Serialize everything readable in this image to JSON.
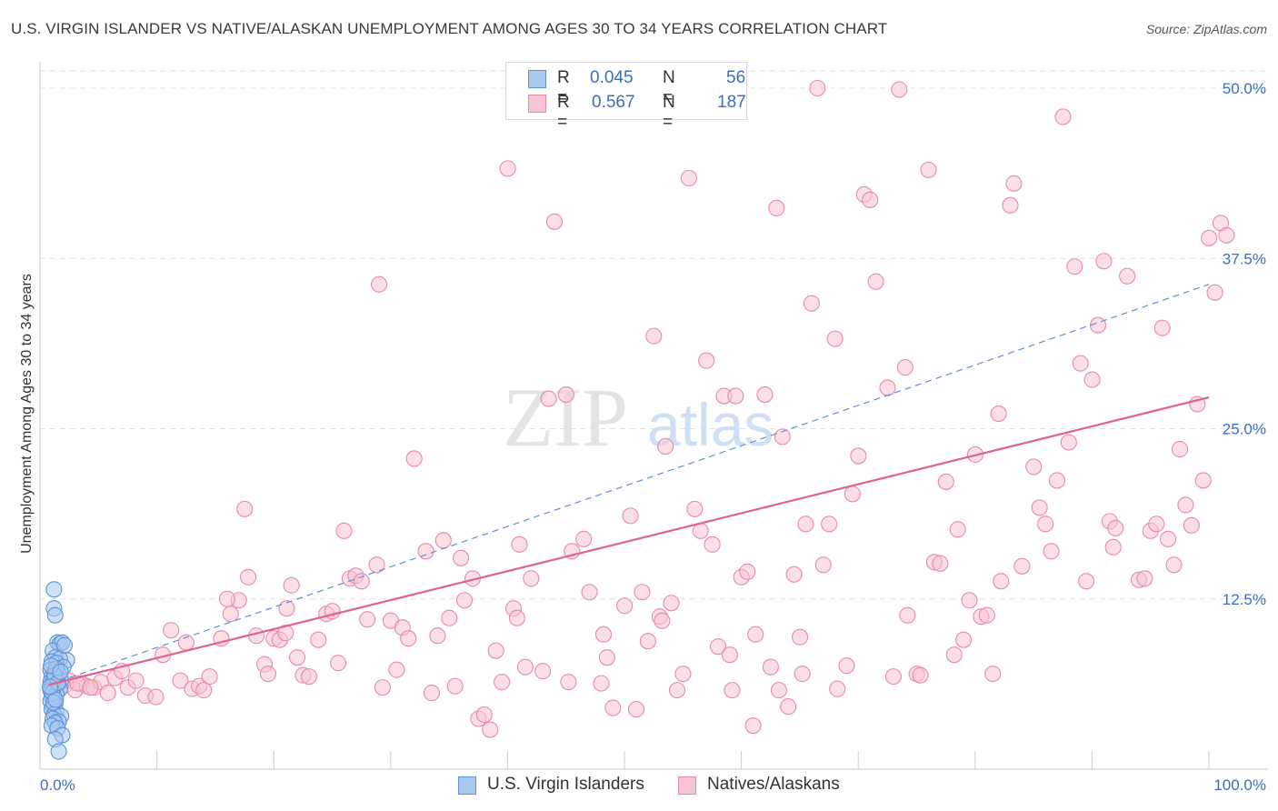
{
  "title": "U.S. VIRGIN ISLANDER VS NATIVE/ALASKAN UNEMPLOYMENT AMONG AGES 30 TO 34 YEARS CORRELATION CHART",
  "source": "Source: ZipAtlas.com",
  "watermark": {
    "zip": "ZIP",
    "atlas": "atlas"
  },
  "legend": {
    "r_label": "R =",
    "n_label": "N =",
    "rows": [
      {
        "r": "0.045",
        "n": "56"
      },
      {
        "r": "0.567",
        "n": "187"
      }
    ]
  },
  "bottom_legend": [
    "U.S. Virgin Islanders",
    "Natives/Alaskans"
  ],
  "colors": {
    "blue_fill": "#a9c8f0",
    "blue_stroke": "#5b93d6",
    "blue_line": "#5b93d6",
    "pink_fill": "#f7c4d3",
    "pink_stroke": "#e88aa8",
    "pink_line": "#e0628e",
    "axis_text": "#3a6fbf",
    "grid": "#e2e2e2"
  },
  "chart_data": {
    "type": "scatter",
    "title": "U.S. VIRGIN ISLANDER VS NATIVE/ALASKAN UNEMPLOYMENT AMONG AGES 30 TO 34 YEARS CORRELATION CHART",
    "xlabel": "",
    "ylabel": "Unemployment Among Ages 30 to 34 years",
    "xlim": [
      0,
      100
    ],
    "ylim": [
      0,
      50
    ],
    "x_tick_labels": [
      "0.0%",
      "100.0%"
    ],
    "y_ticks": [
      12.5,
      25.0,
      37.5,
      50.0
    ],
    "y_tick_labels": [
      "12.5%",
      "25.0%",
      "37.5%",
      "50.0%"
    ],
    "series": [
      {
        "name": "U.S. Virgin Islanders",
        "R": 0.045,
        "N": 56,
        "trend": {
          "x": [
            0,
            100
          ],
          "y": [
            6.2,
            35.6
          ],
          "style": "dashed"
        },
        "points": [
          [
            0.5,
            13.2
          ],
          [
            0.5,
            11.8
          ],
          [
            0.6,
            11.3
          ],
          [
            0.8,
            9.3
          ],
          [
            1.0,
            9.2
          ],
          [
            1.2,
            9.3
          ],
          [
            0.4,
            8.7
          ],
          [
            1.6,
            8.0
          ],
          [
            0.6,
            8.2
          ],
          [
            1.0,
            8.1
          ],
          [
            0.3,
            7.9
          ],
          [
            0.7,
            7.8
          ],
          [
            1.3,
            7.5
          ],
          [
            0.2,
            7.3
          ],
          [
            0.5,
            7.1
          ],
          [
            0.9,
            7.0
          ],
          [
            0.3,
            6.8
          ],
          [
            0.6,
            6.7
          ],
          [
            1.1,
            6.5
          ],
          [
            0.2,
            6.4
          ],
          [
            0.4,
            6.3
          ],
          [
            0.8,
            6.2
          ],
          [
            0.3,
            6.1
          ],
          [
            0.6,
            6.0
          ],
          [
            1.0,
            5.9
          ],
          [
            0.2,
            5.8
          ],
          [
            0.4,
            5.7
          ],
          [
            0.7,
            5.5
          ],
          [
            0.3,
            5.3
          ],
          [
            0.5,
            5.2
          ],
          [
            0.2,
            5.0
          ],
          [
            0.6,
            4.8
          ],
          [
            0.4,
            4.6
          ],
          [
            0.3,
            4.4
          ],
          [
            0.7,
            4.2
          ],
          [
            0.5,
            4.0
          ],
          [
            1.1,
            3.9
          ],
          [
            0.4,
            3.7
          ],
          [
            0.9,
            3.5
          ],
          [
            0.6,
            3.4
          ],
          [
            0.3,
            3.2
          ],
          [
            0.8,
            3.0
          ],
          [
            1.2,
            2.5
          ],
          [
            0.6,
            2.2
          ],
          [
            0.9,
            1.3
          ],
          [
            0.5,
            6.6
          ],
          [
            0.7,
            7.4
          ],
          [
            0.35,
            5.6
          ],
          [
            0.45,
            4.9
          ],
          [
            0.55,
            6.9
          ],
          [
            1.4,
            9.1
          ],
          [
            0.25,
            7.6
          ],
          [
            0.65,
            5.1
          ],
          [
            0.85,
            6.35
          ],
          [
            1.05,
            7.15
          ],
          [
            0.15,
            6.05
          ]
        ]
      },
      {
        "name": "Natives/Alaskans",
        "R": 0.567,
        "N": 187,
        "trend": {
          "x": [
            0,
            100
          ],
          "y": [
            6.2,
            27.3
          ],
          "style": "solid"
        },
        "points": [
          [
            1.2,
            6.2
          ],
          [
            1.5,
            6.5
          ],
          [
            2.0,
            5.8
          ],
          [
            2.5,
            6.3
          ],
          [
            3.0,
            6.1
          ],
          [
            3.6,
            6.0
          ],
          [
            4.2,
            6.4
          ],
          [
            4.8,
            5.6
          ],
          [
            5.4,
            6.7
          ],
          [
            6.0,
            7.2
          ],
          [
            6.5,
            6.0
          ],
          [
            7.2,
            6.5
          ],
          [
            8.0,
            5.4
          ],
          [
            8.9,
            5.3
          ],
          [
            10.2,
            10.2
          ],
          [
            11.0,
            6.5
          ],
          [
            12.0,
            5.9
          ],
          [
            12.6,
            6.1
          ],
          [
            13.5,
            6.8
          ],
          [
            14.5,
            9.6
          ],
          [
            15.3,
            11.4
          ],
          [
            16.0,
            12.4
          ],
          [
            16.5,
            19.1
          ],
          [
            16.8,
            14.1
          ],
          [
            17.5,
            9.8
          ],
          [
            18.2,
            7.7
          ],
          [
            18.5,
            7.0
          ],
          [
            19.0,
            9.6
          ],
          [
            19.5,
            9.5
          ],
          [
            20.1,
            11.8
          ],
          [
            20.5,
            13.5
          ],
          [
            21.0,
            8.2
          ],
          [
            21.5,
            6.9
          ],
          [
            22.0,
            6.8
          ],
          [
            22.8,
            9.5
          ],
          [
            23.5,
            11.4
          ],
          [
            24.0,
            11.6
          ],
          [
            24.5,
            7.8
          ],
          [
            25.0,
            17.5
          ],
          [
            25.5,
            14.0
          ],
          [
            26.0,
            14.2
          ],
          [
            27.0,
            11.0
          ],
          [
            27.8,
            15.0
          ],
          [
            28.0,
            35.6
          ],
          [
            28.3,
            6.0
          ],
          [
            29.0,
            10.9
          ],
          [
            29.5,
            7.3
          ],
          [
            30.0,
            10.4
          ],
          [
            31.0,
            22.8
          ],
          [
            32.0,
            16.0
          ],
          [
            32.5,
            5.6
          ],
          [
            33.0,
            9.8
          ],
          [
            33.5,
            16.8
          ],
          [
            34.0,
            11.1
          ],
          [
            35.0,
            15.5
          ],
          [
            35.3,
            12.4
          ],
          [
            36.0,
            14.0
          ],
          [
            36.5,
            3.7
          ],
          [
            37.0,
            4.0
          ],
          [
            38.0,
            8.7
          ],
          [
            38.5,
            6.4
          ],
          [
            39.0,
            44.1
          ],
          [
            39.5,
            11.8
          ],
          [
            39.8,
            11.1
          ],
          [
            40.0,
            16.5
          ],
          [
            41.0,
            14.0
          ],
          [
            42.0,
            7.2
          ],
          [
            42.5,
            27.2
          ],
          [
            43.0,
            40.2
          ],
          [
            44.0,
            27.5
          ],
          [
            44.5,
            16.0
          ],
          [
            45.5,
            16.9
          ],
          [
            46.0,
            13.0
          ],
          [
            47.0,
            6.3
          ],
          [
            47.5,
            8.2
          ],
          [
            48.0,
            4.5
          ],
          [
            49.0,
            12.0
          ],
          [
            49.5,
            18.6
          ],
          [
            50.0,
            4.4
          ],
          [
            50.5,
            13.0
          ],
          [
            51.0,
            9.4
          ],
          [
            51.5,
            31.8
          ],
          [
            52.0,
            11.2
          ],
          [
            52.5,
            23.7
          ],
          [
            53.0,
            12.2
          ],
          [
            53.5,
            5.8
          ],
          [
            54.0,
            7.0
          ],
          [
            54.5,
            43.4
          ],
          [
            55.0,
            19.1
          ],
          [
            55.5,
            17.5
          ],
          [
            56.0,
            30.0
          ],
          [
            56.5,
            16.5
          ],
          [
            57.0,
            9.0
          ],
          [
            57.5,
            27.4
          ],
          [
            58.0,
            8.4
          ],
          [
            58.5,
            27.4
          ],
          [
            59.0,
            14.1
          ],
          [
            59.5,
            14.5
          ],
          [
            60.0,
            3.2
          ],
          [
            61.0,
            27.5
          ],
          [
            61.5,
            7.5
          ],
          [
            62.0,
            41.2
          ],
          [
            62.5,
            24.4
          ],
          [
            63.0,
            4.6
          ],
          [
            63.5,
            14.3
          ],
          [
            64.0,
            9.7
          ],
          [
            64.5,
            18.0
          ],
          [
            65.0,
            34.2
          ],
          [
            65.5,
            50.0
          ],
          [
            66.0,
            15.0
          ],
          [
            66.5,
            18.0
          ],
          [
            67.0,
            31.6
          ],
          [
            68.0,
            7.6
          ],
          [
            68.5,
            20.2
          ],
          [
            69.0,
            23.0
          ],
          [
            69.5,
            42.2
          ],
          [
            70.0,
            41.8
          ],
          [
            70.5,
            35.8
          ],
          [
            71.5,
            28.0
          ],
          [
            72.0,
            6.8
          ],
          [
            72.5,
            49.9
          ],
          [
            73.0,
            29.5
          ],
          [
            74.0,
            7.0
          ],
          [
            74.3,
            6.9
          ],
          [
            75.0,
            44.0
          ],
          [
            75.5,
            15.2
          ],
          [
            76.0,
            15.1
          ],
          [
            76.5,
            21.1
          ],
          [
            77.5,
            17.6
          ],
          [
            78.0,
            9.5
          ],
          [
            78.5,
            12.4
          ],
          [
            79.0,
            23.1
          ],
          [
            79.5,
            11.2
          ],
          [
            80.0,
            11.3
          ],
          [
            80.5,
            7.0
          ],
          [
            81.0,
            26.1
          ],
          [
            82.0,
            41.4
          ],
          [
            82.3,
            43.0
          ],
          [
            83.0,
            14.9
          ],
          [
            84.0,
            22.2
          ],
          [
            84.5,
            19.2
          ],
          [
            85.0,
            18.0
          ],
          [
            85.5,
            16.0
          ],
          [
            86.0,
            21.2
          ],
          [
            86.5,
            47.9
          ],
          [
            87.0,
            24.0
          ],
          [
            87.5,
            36.9
          ],
          [
            88.0,
            29.8
          ],
          [
            88.5,
            13.8
          ],
          [
            89.0,
            28.6
          ],
          [
            89.5,
            32.6
          ],
          [
            90.0,
            37.3
          ],
          [
            90.5,
            18.2
          ],
          [
            90.8,
            16.3
          ],
          [
            91.0,
            17.7
          ],
          [
            92.0,
            36.2
          ],
          [
            93.0,
            13.9
          ],
          [
            93.5,
            14.0
          ],
          [
            94.0,
            17.5
          ],
          [
            94.5,
            18.0
          ],
          [
            95.0,
            32.4
          ],
          [
            95.5,
            16.9
          ],
          [
            96.0,
            15.0
          ],
          [
            96.5,
            23.5
          ],
          [
            97.0,
            19.4
          ],
          [
            97.5,
            17.9
          ],
          [
            98.0,
            26.8
          ],
          [
            98.5,
            21.2
          ],
          [
            99.0,
            39.0
          ],
          [
            99.5,
            35.0
          ],
          [
            100.0,
            40.1
          ],
          [
            100.5,
            39.2
          ],
          [
            2.2,
            6.3
          ],
          [
            3.3,
            6.0
          ],
          [
            9.5,
            8.4
          ],
          [
            11.5,
            9.3
          ],
          [
            13.0,
            5.8
          ],
          [
            15.0,
            12.5
          ],
          [
            20.0,
            10.0
          ],
          [
            26.5,
            13.8
          ],
          [
            30.5,
            9.6
          ],
          [
            34.5,
            6.1
          ],
          [
            37.5,
            2.9
          ],
          [
            40.5,
            7.5
          ],
          [
            44.2,
            6.4
          ],
          [
            47.2,
            9.9
          ],
          [
            52.2,
            10.9
          ],
          [
            58.2,
            5.8
          ],
          [
            60.2,
            9.9
          ],
          [
            62.2,
            5.8
          ],
          [
            64.2,
            7.0
          ],
          [
            67.2,
            5.9
          ],
          [
            73.2,
            11.3
          ],
          [
            77.2,
            8.4
          ],
          [
            81.2,
            13.8
          ]
        ]
      }
    ]
  }
}
